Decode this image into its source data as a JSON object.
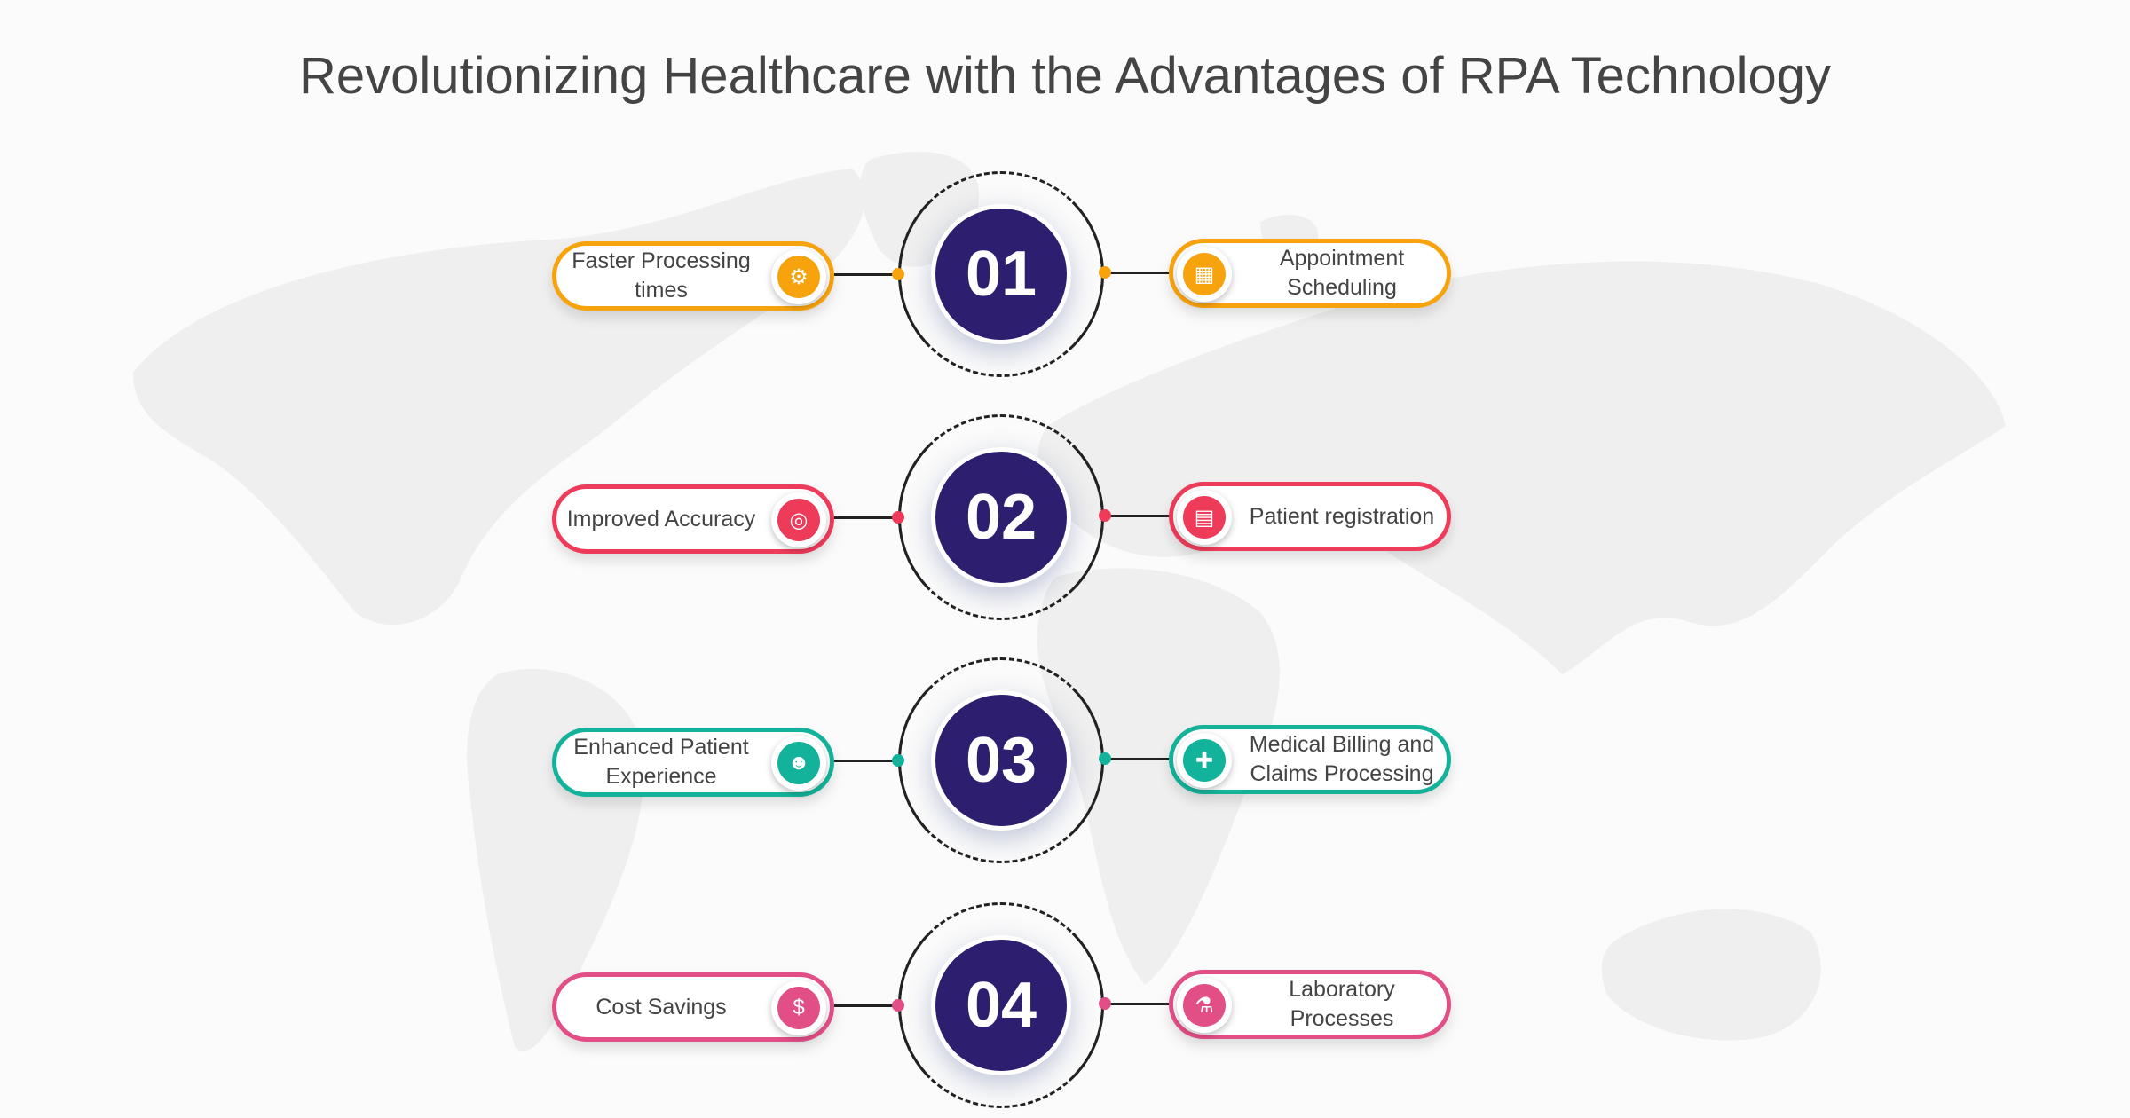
{
  "title": "Revolutionizing Healthcare with the Advantages of RPA Technology",
  "colors": {
    "navy": "#2d1e6f",
    "orange": "#f7a30e",
    "red": "#ee3b5a",
    "teal": "#13b29a",
    "pink": "#e24f87"
  },
  "rows": [
    {
      "number": "01",
      "color": "#f7a30e",
      "left": {
        "label": "Faster Processing times",
        "icon": "gear-speed-icon",
        "glyph": "⚙"
      },
      "right": {
        "label": "Appointment Scheduling",
        "icon": "calendar-icon",
        "glyph": "▦"
      }
    },
    {
      "number": "02",
      "color": "#ee3b5a",
      "left": {
        "label": "Improved Accuracy",
        "icon": "target-people-icon",
        "glyph": "◎"
      },
      "right": {
        "label": "Patient registration",
        "icon": "clipboard-icon",
        "glyph": "▤"
      }
    },
    {
      "number": "03",
      "color": "#13b29a",
      "left": {
        "label": "Enhanced Patient Experience",
        "icon": "doctor-icon",
        "glyph": "☻"
      },
      "right": {
        "label": "Medical Billing and Claims Processing",
        "icon": "medical-bill-icon",
        "glyph": "✚"
      }
    },
    {
      "number": "04",
      "color": "#e24f87",
      "left": {
        "label": "Cost Savings",
        "icon": "piggy-bank-icon",
        "glyph": "$"
      },
      "right": {
        "label": "Laboratory Processes",
        "icon": "lab-flask-icon",
        "glyph": "⚗"
      }
    }
  ]
}
